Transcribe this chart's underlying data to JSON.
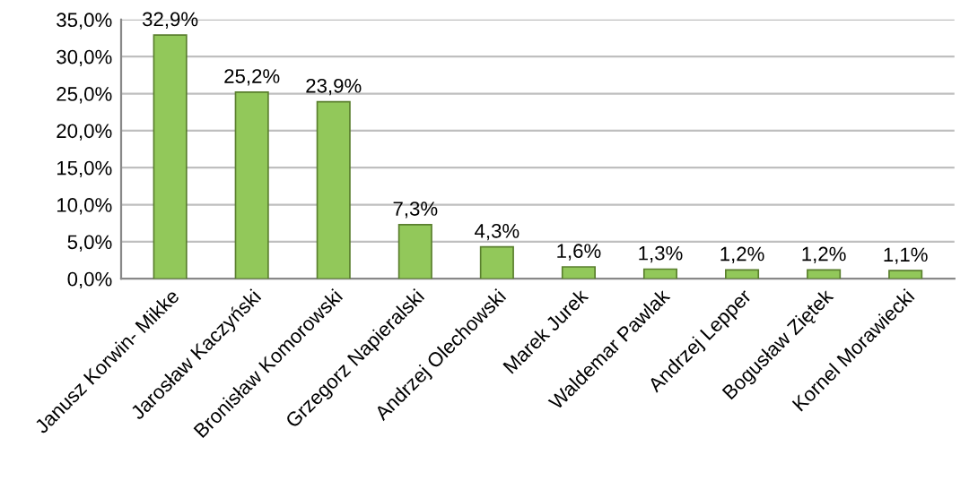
{
  "chart_data": {
    "type": "bar",
    "categories": [
      "Janusz Korwin- Mikke",
      "Jarosław Kaczyński",
      "Bronisław Komorowski",
      "Grzegorz Napieralski",
      "Andrzej Olechowski",
      "Marek Jurek",
      "Waldemar Pawlak",
      "Andrzej Lepper",
      "Bogusław Ziętek",
      "Kornel Morawiecki"
    ],
    "values": [
      32.9,
      25.2,
      23.9,
      7.3,
      4.3,
      1.6,
      1.3,
      1.2,
      1.2,
      1.1
    ],
    "value_labels": [
      "32,9%",
      "25,2%",
      "23,9%",
      "7,3%",
      "4,3%",
      "1,6%",
      "1,3%",
      "1,2%",
      "1,2%",
      "1,1%"
    ],
    "color": "#92c85a",
    "ylim": [
      0,
      35
    ],
    "yticks": [
      {
        "value": 0,
        "label": "0,0%"
      },
      {
        "value": 5,
        "label": "5,0%"
      },
      {
        "value": 10,
        "label": "10,0%"
      },
      {
        "value": 15,
        "label": "15,0%"
      },
      {
        "value": 20,
        "label": "20,0%"
      },
      {
        "value": 25,
        "label": "25,0%"
      },
      {
        "value": 30,
        "label": "30,0%"
      },
      {
        "value": 35,
        "label": "35,0%"
      }
    ],
    "grid": "y"
  }
}
